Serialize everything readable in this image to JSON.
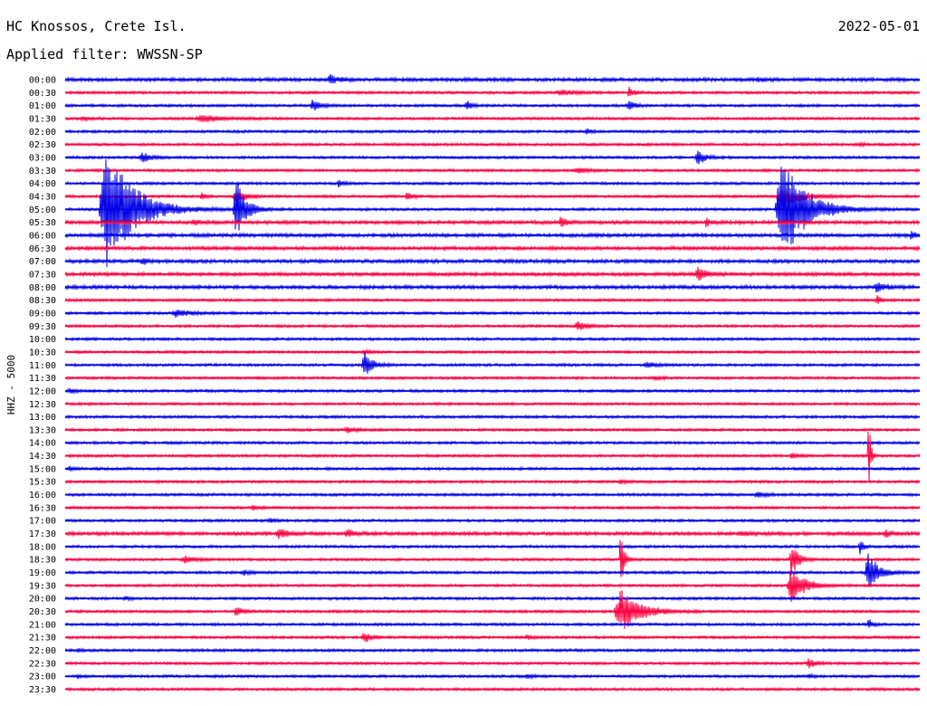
{
  "header": {
    "station": "HC Knossos, Crete Isl.",
    "date": "2022-05-01",
    "filter_label": "Applied filter: WWSSN-SP"
  },
  "chart_data": {
    "type": "seismogram",
    "title": "HC Knossos, Crete Isl.",
    "subtitle": "Applied filter: WWSSN-SP",
    "date": "2022-05-01",
    "ylabel": "HHZ - 5000",
    "trace_colors": [
      "#0000e6",
      "#ff0040"
    ],
    "row_labels": [
      "00:00",
      "00:30",
      "01:00",
      "01:30",
      "02:00",
      "02:30",
      "03:00",
      "03:30",
      "04:00",
      "04:30",
      "05:00",
      "05:30",
      "06:00",
      "06:30",
      "07:00",
      "07:30",
      "08:00",
      "08:30",
      "09:00",
      "09:30",
      "10:00",
      "10:30",
      "11:00",
      "11:30",
      "12:00",
      "12:30",
      "13:00",
      "13:30",
      "14:00",
      "14:30",
      "15:00",
      "15:30",
      "16:00",
      "16:30",
      "17:00",
      "17:30",
      "18:00",
      "18:30",
      "19:00",
      "19:30",
      "20:00",
      "20:30",
      "21:00",
      "21:30",
      "22:00",
      "22:30",
      "23:00",
      "23:30"
    ],
    "noise": [
      4,
      3,
      3,
      3,
      3,
      3,
      3,
      3,
      3,
      3,
      3,
      4,
      4,
      4,
      4,
      4,
      4,
      3,
      3,
      3,
      3,
      3,
      3,
      3,
      3,
      3,
      3,
      3,
      3,
      3,
      3,
      3,
      3,
      3,
      3,
      4,
      3,
      3,
      3,
      3,
      3,
      3,
      3,
      3,
      3,
      3,
      3,
      3
    ],
    "events": [
      {
        "row": 0,
        "x": 0.31,
        "amp": 10,
        "w": 0.012
      },
      {
        "row": 0,
        "x": 0.81,
        "amp": 5,
        "w": 0.01
      },
      {
        "row": 1,
        "x": 0.58,
        "amp": 6,
        "w": 0.02
      },
      {
        "row": 1,
        "x": 0.66,
        "amp": 12,
        "w": 0.008
      },
      {
        "row": 2,
        "x": 0.29,
        "amp": 12,
        "w": 0.012
      },
      {
        "row": 2,
        "x": 0.47,
        "amp": 10,
        "w": 0.008
      },
      {
        "row": 2,
        "x": 0.66,
        "amp": 10,
        "w": 0.01
      },
      {
        "row": 3,
        "x": 0.02,
        "amp": 5,
        "w": 0.008
      },
      {
        "row": 3,
        "x": 0.16,
        "amp": 8,
        "w": 0.03
      },
      {
        "row": 4,
        "x": 0.61,
        "amp": 5,
        "w": 0.01
      },
      {
        "row": 5,
        "x": 0.93,
        "amp": 4,
        "w": 0.006
      },
      {
        "row": 6,
        "x": 0.09,
        "amp": 12,
        "w": 0.012
      },
      {
        "row": 6,
        "x": 0.74,
        "amp": 16,
        "w": 0.012
      },
      {
        "row": 7,
        "x": 0.6,
        "amp": 6,
        "w": 0.015
      },
      {
        "row": 8,
        "x": 0.32,
        "amp": 8,
        "w": 0.008
      },
      {
        "row": 9,
        "x": 0.16,
        "amp": 8,
        "w": 0.006
      },
      {
        "row": 9,
        "x": 0.2,
        "amp": 14,
        "w": 0.015
      },
      {
        "row": 9,
        "x": 0.4,
        "amp": 8,
        "w": 0.01
      },
      {
        "row": 9,
        "x": 0.84,
        "amp": 22,
        "w": 0.03
      },
      {
        "row": 10,
        "x": 0.05,
        "amp": 140,
        "w": 0.04
      },
      {
        "row": 10,
        "x": 0.2,
        "amp": 70,
        "w": 0.015
      },
      {
        "row": 10,
        "x": 0.84,
        "amp": 120,
        "w": 0.035
      },
      {
        "row": 11,
        "x": 0.15,
        "amp": 6,
        "w": 0.008
      },
      {
        "row": 11,
        "x": 0.58,
        "amp": 14,
        "w": 0.008
      },
      {
        "row": 11,
        "x": 0.75,
        "amp": 10,
        "w": 0.006
      },
      {
        "row": 12,
        "x": 0.99,
        "amp": 12,
        "w": 0.006
      },
      {
        "row": 14,
        "x": 0.09,
        "amp": 8,
        "w": 0.008
      },
      {
        "row": 15,
        "x": 0.74,
        "amp": 14,
        "w": 0.015
      },
      {
        "row": 16,
        "x": 0.95,
        "amp": 10,
        "w": 0.015
      },
      {
        "row": 17,
        "x": 0.95,
        "amp": 10,
        "w": 0.006
      },
      {
        "row": 18,
        "x": 0.13,
        "amp": 8,
        "w": 0.02
      },
      {
        "row": 19,
        "x": 0.6,
        "amp": 10,
        "w": 0.015
      },
      {
        "row": 21,
        "x": 0.35,
        "amp": 4,
        "w": 0.01
      },
      {
        "row": 22,
        "x": 0.35,
        "amp": 30,
        "w": 0.012
      },
      {
        "row": 22,
        "x": 0.68,
        "amp": 6,
        "w": 0.015
      },
      {
        "row": 23,
        "x": 0.69,
        "amp": 4,
        "w": 0.01
      },
      {
        "row": 24,
        "x": 0.005,
        "amp": 6,
        "w": 0.008
      },
      {
        "row": 27,
        "x": 0.33,
        "amp": 6,
        "w": 0.012
      },
      {
        "row": 29,
        "x": 0.85,
        "amp": 6,
        "w": 0.008
      },
      {
        "row": 29,
        "x": 0.94,
        "amp": 100,
        "w": 0.003
      },
      {
        "row": 30,
        "x": 0.005,
        "amp": 5,
        "w": 0.006
      },
      {
        "row": 31,
        "x": 0.65,
        "amp": 5,
        "w": 0.01
      },
      {
        "row": 32,
        "x": 0.81,
        "amp": 5,
        "w": 0.015
      },
      {
        "row": 33,
        "x": 0.22,
        "amp": 5,
        "w": 0.01
      },
      {
        "row": 34,
        "x": 0.24,
        "amp": 6,
        "w": 0.008
      },
      {
        "row": 35,
        "x": 0.25,
        "amp": 10,
        "w": 0.015
      },
      {
        "row": 35,
        "x": 0.33,
        "amp": 8,
        "w": 0.01
      },
      {
        "row": 35,
        "x": 0.79,
        "amp": 4,
        "w": 0.015
      },
      {
        "row": 35,
        "x": 0.96,
        "amp": 8,
        "w": 0.01
      },
      {
        "row": 36,
        "x": 0.93,
        "amp": 20,
        "w": 0.005
      },
      {
        "row": 37,
        "x": 0.14,
        "amp": 8,
        "w": 0.015
      },
      {
        "row": 37,
        "x": 0.65,
        "amp": 70,
        "w": 0.005
      },
      {
        "row": 37,
        "x": 0.85,
        "amp": 40,
        "w": 0.01
      },
      {
        "row": 38,
        "x": 0.21,
        "amp": 5,
        "w": 0.01
      },
      {
        "row": 38,
        "x": 0.94,
        "amp": 50,
        "w": 0.015
      },
      {
        "row": 39,
        "x": 0.85,
        "amp": 40,
        "w": 0.02
      },
      {
        "row": 40,
        "x": 0.07,
        "amp": 5,
        "w": 0.008
      },
      {
        "row": 41,
        "x": 0.2,
        "amp": 10,
        "w": 0.01
      },
      {
        "row": 41,
        "x": 0.65,
        "amp": 50,
        "w": 0.03
      },
      {
        "row": 42,
        "x": 0.94,
        "amp": 12,
        "w": 0.006
      },
      {
        "row": 43,
        "x": 0.35,
        "amp": 12,
        "w": 0.012
      },
      {
        "row": 43,
        "x": 0.54,
        "amp": 5,
        "w": 0.008
      },
      {
        "row": 44,
        "x": 0.015,
        "amp": 4,
        "w": 0.006
      },
      {
        "row": 45,
        "x": 0.87,
        "amp": 10,
        "w": 0.01
      },
      {
        "row": 46,
        "x": 0.015,
        "amp": 4,
        "w": 0.006
      },
      {
        "row": 46,
        "x": 0.54,
        "amp": 5,
        "w": 0.008
      },
      {
        "row": 46,
        "x": 0.87,
        "amp": 4,
        "w": 0.008
      }
    ]
  }
}
